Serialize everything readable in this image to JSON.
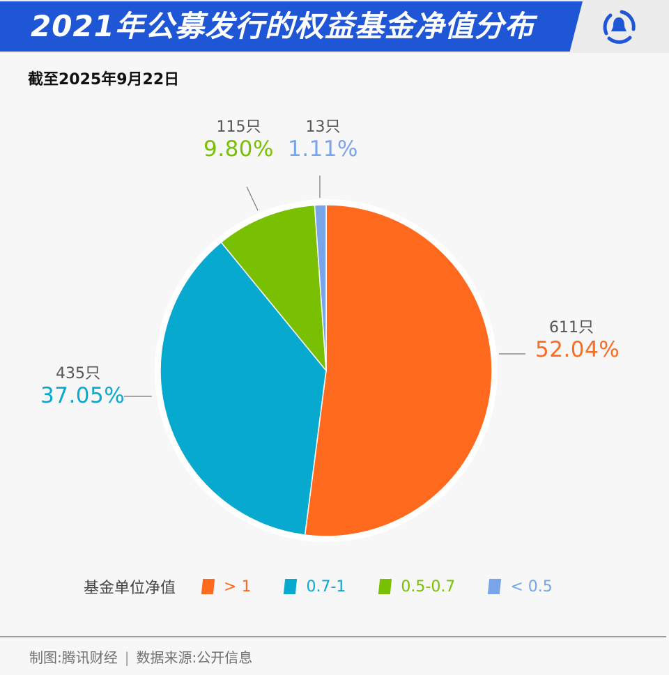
{
  "header": {
    "title": "2021年公募发行的权益基金净值分布",
    "logo_icon": "tencent-penguin-logo-icon",
    "brand_color": "#1e56d6"
  },
  "subtitle": "截至2025年9月22日",
  "labels": {
    "gt1": {
      "count": "611只",
      "pct": "52.04%"
    },
    "r07_1": {
      "count": "435只",
      "pct": "37.05%"
    },
    "r05_07": {
      "count": "115只",
      "pct": "9.80%"
    },
    "lt05": {
      "count": "13只",
      "pct": "1.11%"
    }
  },
  "legend": {
    "title": "基金单位净值",
    "items": [
      {
        "label": "> 1",
        "color": "#ff6a1f"
      },
      {
        "label": "0.7-1",
        "color": "#08a9cf"
      },
      {
        "label": "0.5-0.7",
        "color": "#78c001"
      },
      {
        "label": "< 0.5",
        "color": "#78a4ea"
      }
    ]
  },
  "footer": {
    "credit": "制图:腾讯财经",
    "separator": "|",
    "source": "数据来源:公开信息"
  },
  "chart_data": {
    "type": "pie",
    "title": "2021年公募发行的权益基金净值分布",
    "subtitle": "截至2025年9月22日",
    "legend_title": "基金单位净值",
    "legend_position": "bottom",
    "categories": [
      "> 1",
      "0.7-1",
      "0.5-0.7",
      "< 0.5"
    ],
    "values": [
      52.04,
      37.05,
      9.8,
      1.11
    ],
    "counts": [
      611,
      435,
      115,
      13
    ],
    "count_unit": "只",
    "colors": [
      "#ff6a1f",
      "#08a9cf",
      "#78c001",
      "#78a4ea"
    ],
    "start_angle_deg": 0,
    "direction": "clockwise"
  }
}
